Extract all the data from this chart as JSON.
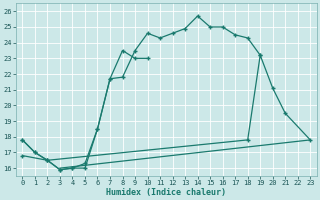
{
  "title": "",
  "xlabel": "Humidex (Indice chaleur)",
  "bg_color": "#cce8e8",
  "grid_color": "#b0d4d4",
  "line_color": "#1a7a6e",
  "xlim": [
    -0.5,
    23.5
  ],
  "ylim": [
    15.5,
    26.5
  ],
  "xticks": [
    0,
    1,
    2,
    3,
    4,
    5,
    6,
    7,
    8,
    9,
    10,
    11,
    12,
    13,
    14,
    15,
    16,
    17,
    18,
    19,
    20,
    21,
    22,
    23
  ],
  "yticks": [
    16,
    17,
    18,
    19,
    20,
    21,
    22,
    23,
    24,
    25,
    26
  ],
  "series": [
    {
      "x": [
        0,
        1,
        2,
        3,
        4,
        5,
        6,
        7,
        8,
        9,
        10,
        11,
        12,
        13,
        14,
        15,
        16,
        17,
        18,
        19
      ],
      "y": [
        17.8,
        17.0,
        16.5,
        15.9,
        16.0,
        16.0,
        18.5,
        21.7,
        21.8,
        23.5,
        24.6,
        24.3,
        24.6,
        24.9,
        25.7,
        25.0,
        25.0,
        24.5,
        24.3,
        23.2
      ],
      "marker": true
    },
    {
      "x": [
        0,
        1,
        2,
        3,
        4,
        5,
        6,
        7,
        8,
        9,
        10
      ],
      "y": [
        17.8,
        17.0,
        16.5,
        15.9,
        16.0,
        16.3,
        18.5,
        21.7,
        23.5,
        23.0,
        23.0
      ],
      "marker": true
    },
    {
      "x": [
        0,
        2,
        18,
        19,
        20,
        21,
        23
      ],
      "y": [
        16.8,
        16.5,
        17.8,
        23.2,
        21.1,
        19.5,
        17.8
      ],
      "marker": true
    },
    {
      "x": [
        3,
        23
      ],
      "y": [
        16.0,
        17.8
      ],
      "marker": false
    }
  ]
}
